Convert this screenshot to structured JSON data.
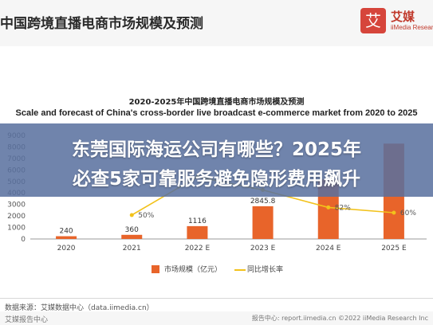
{
  "header": {
    "title": "中国跨境直播电商市场规模及预测",
    "brand_name": "艾媒",
    "brand_mark": "艾",
    "brand_sub": "iiMedia Research"
  },
  "overlay": {
    "line1": "东莞国际海运公司有哪些？2025年",
    "line2": "必查5家可靠服务避免隐形费用飙升"
  },
  "chart_data": {
    "type": "bar",
    "title": "2020-2025年中国跨境直播电商市场规模及预测",
    "subtitle": "Scale and forecast of China's cross-border live broadcast e-commerce market from 2020 to 2025",
    "categories": [
      "2020",
      "2021",
      "2022 E",
      "2023 E",
      "2024 E",
      "2025 E"
    ],
    "series": [
      {
        "name": "市场规模（亿元）",
        "type": "bar",
        "values": [
          240,
          360,
          1116,
          2845.8,
          5175,
          8287
        ]
      },
      {
        "name": "同比增长率",
        "type": "line",
        "values": [
          null,
          0.5,
          2.1,
          1.55,
          0.82,
          0.6
        ]
      }
    ],
    "bar_labels": [
      "240",
      "360",
      "1116",
      "2845.8",
      "",
      ""
    ],
    "line_labels": [
      "",
      "50%",
      "",
      "",
      "82%",
      "60%"
    ],
    "y_ticks": [
      0,
      1000,
      2000,
      3000,
      4000,
      5000,
      6000,
      7000,
      8000,
      9000
    ],
    "ylim": [
      0,
      9000
    ],
    "xlabel": "",
    "ylabel": "",
    "legend_position": "bottom",
    "grid": false,
    "colors": {
      "bar": "#e8642a",
      "line": "#f2c21b",
      "axis": "#999999"
    }
  },
  "footer": {
    "source": "数据来源：艾媒数据中心（data.iimedia.cn）",
    "report_logo": "艾媒报告中心",
    "report_right": "报告中心: report.iimedia.cn  ©2022 iiMedia Research Inc"
  }
}
